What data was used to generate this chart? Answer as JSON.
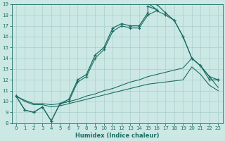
{
  "xlabel": "Humidex (Indice chaleur)",
  "bg_color": "#cce8e4",
  "grid_color": "#aacfcb",
  "line_color": "#1a6e64",
  "xlim": [
    -0.5,
    23.5
  ],
  "ylim": [
    8,
    19
  ],
  "xticks": [
    0,
    1,
    2,
    3,
    4,
    5,
    6,
    7,
    8,
    9,
    10,
    11,
    12,
    13,
    14,
    15,
    16,
    17,
    18,
    19,
    20,
    21,
    22,
    23
  ],
  "yticks": [
    8,
    9,
    10,
    11,
    12,
    13,
    14,
    15,
    16,
    17,
    18,
    19
  ],
  "line_main_x": [
    0,
    1,
    2,
    3,
    4,
    5,
    6,
    7,
    8,
    9,
    10,
    11,
    12,
    13,
    14,
    15,
    15,
    16,
    15,
    16,
    17,
    18,
    19,
    20,
    21,
    22,
    23
  ],
  "line_main_y": [
    10.5,
    9.2,
    9.0,
    9.5,
    8.2,
    9.8,
    10.2,
    12.0,
    12.5,
    14.3,
    15.0,
    16.8,
    17.2,
    17.0,
    17.0,
    18.2,
    18.8,
    18.5,
    19.1,
    19.0,
    18.2,
    17.5,
    16.0,
    14.0,
    13.3,
    12.3,
    12.0
  ],
  "line_main2_x": [
    0,
    1,
    2,
    3,
    4,
    5,
    6,
    7,
    8,
    9,
    10,
    11,
    12,
    13,
    14,
    15,
    16,
    17,
    18,
    19,
    20,
    21,
    22,
    23
  ],
  "line_main2_y": [
    10.5,
    9.2,
    9.0,
    9.5,
    8.2,
    9.8,
    10.0,
    11.8,
    12.3,
    14.0,
    14.8,
    16.5,
    17.0,
    16.8,
    16.8,
    18.0,
    18.4,
    18.0,
    17.5,
    16.0,
    14.0,
    13.3,
    12.0,
    12.0
  ],
  "line_diag1_x": [
    0,
    1,
    2,
    3,
    4,
    5,
    6,
    7,
    8,
    9,
    10,
    11,
    12,
    13,
    14,
    15,
    16,
    17,
    18,
    19,
    20,
    21,
    22,
    23
  ],
  "line_diag1_y": [
    10.5,
    10.1,
    9.8,
    9.8,
    9.7,
    9.8,
    10.0,
    10.2,
    10.5,
    10.7,
    11.0,
    11.2,
    11.5,
    11.8,
    12.0,
    12.3,
    12.5,
    12.7,
    12.9,
    13.1,
    14.0,
    13.3,
    12.3,
    11.3
  ],
  "line_diag2_x": [
    0,
    1,
    2,
    3,
    4,
    5,
    6,
    7,
    8,
    9,
    10,
    11,
    12,
    13,
    14,
    15,
    16,
    17,
    18,
    19,
    20,
    21,
    22,
    23
  ],
  "line_diag2_y": [
    10.5,
    10.0,
    9.7,
    9.7,
    9.5,
    9.6,
    9.8,
    10.0,
    10.2,
    10.4,
    10.6,
    10.8,
    11.0,
    11.2,
    11.4,
    11.6,
    11.7,
    11.8,
    11.9,
    12.0,
    13.2,
    12.5,
    11.5,
    11.0
  ]
}
